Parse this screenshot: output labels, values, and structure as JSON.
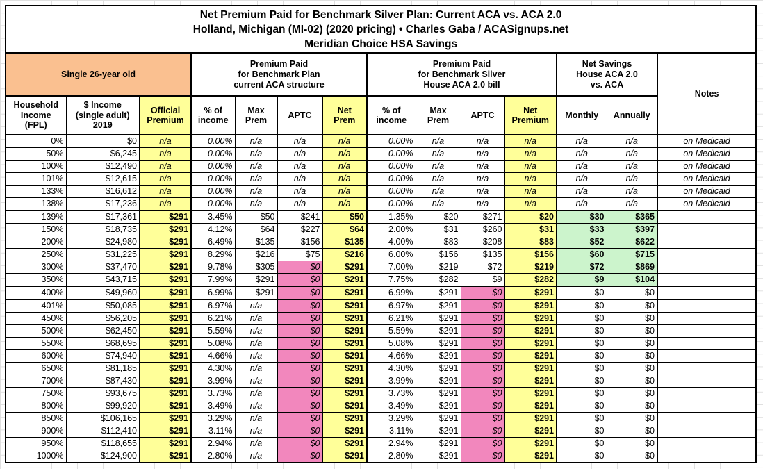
{
  "title": {
    "line1": "Net Premium Paid for Benchmark Silver Plan: Current ACA vs. ACA 2.0",
    "line2": "Holland, Michigan (MI-02) (2020 pricing) • Charles Gaba / ACASignups.net",
    "line3": "Meridian Choice HSA Savings"
  },
  "header": {
    "subject": "Single 26-year old",
    "groups": {
      "current_aca": "Premium Paid\nfor Benchmark Plan\ncurrent ACA structure",
      "house_aca2": "Premium Paid\nfor Benchmark Silver\nHouse ACA 2.0 bill",
      "net_savings": "Net Savings\nHouse ACA 2.0\nvs. ACA",
      "notes": "Notes"
    },
    "columns": [
      "Household\nIncome\n(FPL)",
      "$ Income\n(single adult)\n2019",
      "Official\nPremium",
      "% of\nincome",
      "Max\nPrem",
      "APTC",
      "Net\nPrem",
      "% of\nincome",
      "Max\nPrem",
      "APTC",
      "Net\nPremium",
      "Monthly",
      "Annually"
    ]
  },
  "colors": {
    "subject_header_bg": "#FAC090",
    "highlight_yellow": "#FFFF99",
    "highlight_pink": "#F287BD",
    "highlight_green": "#CCF4CC",
    "border": "#000000",
    "grid_line": "#E0E0E0"
  },
  "table": {
    "rows": [
      {
        "medicaid": true,
        "green": false,
        "thick_top": false,
        "cells": [
          "0%",
          "$0",
          "n/a",
          "0.00%",
          "n/a",
          "n/a",
          "n/a",
          "0.00%",
          "n/a",
          "n/a",
          "n/a",
          "n/a",
          "n/a",
          "on Medicaid"
        ]
      },
      {
        "medicaid": true,
        "green": false,
        "thick_top": false,
        "cells": [
          "50%",
          "$6,245",
          "n/a",
          "0.00%",
          "n/a",
          "n/a",
          "n/a",
          "0.00%",
          "n/a",
          "n/a",
          "n/a",
          "n/a",
          "n/a",
          "on Medicaid"
        ]
      },
      {
        "medicaid": true,
        "green": false,
        "thick_top": false,
        "cells": [
          "100%",
          "$12,490",
          "n/a",
          "0.00%",
          "n/a",
          "n/a",
          "n/a",
          "0.00%",
          "n/a",
          "n/a",
          "n/a",
          "n/a",
          "n/a",
          "on Medicaid"
        ]
      },
      {
        "medicaid": true,
        "green": false,
        "thick_top": false,
        "cells": [
          "101%",
          "$12,615",
          "n/a",
          "0.00%",
          "n/a",
          "n/a",
          "n/a",
          "0.00%",
          "n/a",
          "n/a",
          "n/a",
          "n/a",
          "n/a",
          "on Medicaid"
        ]
      },
      {
        "medicaid": true,
        "green": false,
        "thick_top": false,
        "cells": [
          "133%",
          "$16,612",
          "n/a",
          "0.00%",
          "n/a",
          "n/a",
          "n/a",
          "0.00%",
          "n/a",
          "n/a",
          "n/a",
          "n/a",
          "n/a",
          "on Medicaid"
        ]
      },
      {
        "medicaid": true,
        "green": false,
        "thick_top": false,
        "cells": [
          "138%",
          "$17,236",
          "n/a",
          "0.00%",
          "n/a",
          "n/a",
          "n/a",
          "0.00%",
          "n/a",
          "n/a",
          "n/a",
          "n/a",
          "n/a",
          "on Medicaid"
        ]
      },
      {
        "medicaid": false,
        "green": true,
        "thick_top": true,
        "cells": [
          "139%",
          "$17,361",
          "$291",
          "3.45%",
          "$50",
          "$241",
          "$50",
          "1.35%",
          "$20",
          "$271",
          "$20",
          "$30",
          "$365",
          ""
        ]
      },
      {
        "medicaid": false,
        "green": true,
        "thick_top": false,
        "cells": [
          "150%",
          "$18,735",
          "$291",
          "4.12%",
          "$64",
          "$227",
          "$64",
          "2.00%",
          "$31",
          "$260",
          "$31",
          "$33",
          "$397",
          ""
        ]
      },
      {
        "medicaid": false,
        "green": true,
        "thick_top": false,
        "cells": [
          "200%",
          "$24,980",
          "$291",
          "6.49%",
          "$135",
          "$156",
          "$135",
          "4.00%",
          "$83",
          "$208",
          "$83",
          "$52",
          "$622",
          ""
        ]
      },
      {
        "medicaid": false,
        "green": true,
        "thick_top": false,
        "cells": [
          "250%",
          "$31,225",
          "$291",
          "8.29%",
          "$216",
          "$75",
          "$216",
          "6.00%",
          "$156",
          "$135",
          "$156",
          "$60",
          "$715",
          ""
        ]
      },
      {
        "medicaid": false,
        "green": true,
        "thick_top": false,
        "cells": [
          "300%",
          "$37,470",
          "$291",
          "9.78%",
          "$305",
          "$0",
          "$291",
          "7.00%",
          "$219",
          "$72",
          "$219",
          "$72",
          "$869",
          ""
        ]
      },
      {
        "medicaid": false,
        "green": true,
        "thick_top": false,
        "cells": [
          "350%",
          "$43,715",
          "$291",
          "7.99%",
          "$291",
          "$0",
          "$291",
          "7.75%",
          "$282",
          "$9",
          "$282",
          "$9",
          "$104",
          ""
        ]
      },
      {
        "medicaid": false,
        "green": false,
        "thick_top": true,
        "cells": [
          "400%",
          "$49,960",
          "$291",
          "6.99%",
          "$291",
          "$0",
          "$291",
          "6.99%",
          "$291",
          "$0",
          "$291",
          "$0",
          "$0",
          ""
        ]
      },
      {
        "medicaid": false,
        "green": false,
        "thick_top": true,
        "cells": [
          "401%",
          "$50,085",
          "$291",
          "6.97%",
          "n/a",
          "$0",
          "$291",
          "6.97%",
          "$291",
          "$0",
          "$291",
          "$0",
          "$0",
          ""
        ]
      },
      {
        "medicaid": false,
        "green": false,
        "thick_top": false,
        "cells": [
          "450%",
          "$56,205",
          "$291",
          "6.21%",
          "n/a",
          "$0",
          "$291",
          "6.21%",
          "$291",
          "$0",
          "$291",
          "$0",
          "$0",
          ""
        ]
      },
      {
        "medicaid": false,
        "green": false,
        "thick_top": false,
        "cells": [
          "500%",
          "$62,450",
          "$291",
          "5.59%",
          "n/a",
          "$0",
          "$291",
          "5.59%",
          "$291",
          "$0",
          "$291",
          "$0",
          "$0",
          ""
        ]
      },
      {
        "medicaid": false,
        "green": false,
        "thick_top": false,
        "cells": [
          "550%",
          "$68,695",
          "$291",
          "5.08%",
          "n/a",
          "$0",
          "$291",
          "5.08%",
          "$291",
          "$0",
          "$291",
          "$0",
          "$0",
          ""
        ]
      },
      {
        "medicaid": false,
        "green": false,
        "thick_top": false,
        "cells": [
          "600%",
          "$74,940",
          "$291",
          "4.66%",
          "n/a",
          "$0",
          "$291",
          "4.66%",
          "$291",
          "$0",
          "$291",
          "$0",
          "$0",
          ""
        ]
      },
      {
        "medicaid": false,
        "green": false,
        "thick_top": false,
        "cells": [
          "650%",
          "$81,185",
          "$291",
          "4.30%",
          "n/a",
          "$0",
          "$291",
          "4.30%",
          "$291",
          "$0",
          "$291",
          "$0",
          "$0",
          ""
        ]
      },
      {
        "medicaid": false,
        "green": false,
        "thick_top": false,
        "cells": [
          "700%",
          "$87,430",
          "$291",
          "3.99%",
          "n/a",
          "$0",
          "$291",
          "3.99%",
          "$291",
          "$0",
          "$291",
          "$0",
          "$0",
          ""
        ]
      },
      {
        "medicaid": false,
        "green": false,
        "thick_top": false,
        "cells": [
          "750%",
          "$93,675",
          "$291",
          "3.73%",
          "n/a",
          "$0",
          "$291",
          "3.73%",
          "$291",
          "$0",
          "$291",
          "$0",
          "$0",
          ""
        ]
      },
      {
        "medicaid": false,
        "green": false,
        "thick_top": false,
        "cells": [
          "800%",
          "$99,920",
          "$291",
          "3.49%",
          "n/a",
          "$0",
          "$291",
          "3.49%",
          "$291",
          "$0",
          "$291",
          "$0",
          "$0",
          ""
        ]
      },
      {
        "medicaid": false,
        "green": false,
        "thick_top": false,
        "cells": [
          "850%",
          "$106,165",
          "$291",
          "3.29%",
          "n/a",
          "$0",
          "$291",
          "3.29%",
          "$291",
          "$0",
          "$291",
          "$0",
          "$0",
          ""
        ]
      },
      {
        "medicaid": false,
        "green": false,
        "thick_top": false,
        "cells": [
          "900%",
          "$112,410",
          "$291",
          "3.11%",
          "n/a",
          "$0",
          "$291",
          "3.11%",
          "$291",
          "$0",
          "$291",
          "$0",
          "$0",
          ""
        ]
      },
      {
        "medicaid": false,
        "green": false,
        "thick_top": false,
        "cells": [
          "950%",
          "$118,655",
          "$291",
          "2.94%",
          "n/a",
          "$0",
          "$291",
          "2.94%",
          "$291",
          "$0",
          "$291",
          "$0",
          "$0",
          ""
        ]
      },
      {
        "medicaid": false,
        "green": false,
        "thick_top": false,
        "cells": [
          "1000%",
          "$124,900",
          "$291",
          "2.80%",
          "n/a",
          "$0",
          "$291",
          "2.80%",
          "$291",
          "$0",
          "$291",
          "$0",
          "$0",
          ""
        ]
      }
    ]
  }
}
